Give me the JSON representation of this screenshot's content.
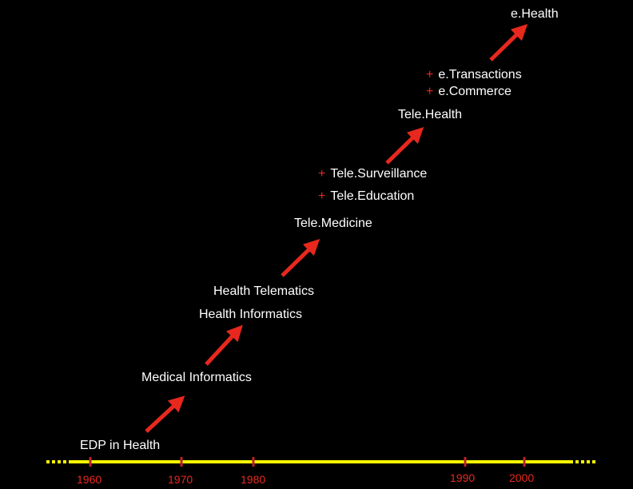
{
  "stages": {
    "edp": "EDP in Health",
    "medical_informatics": "Medical Informatics",
    "health_informatics": "Health Informatics",
    "health_telematics": "Health Telematics",
    "telemedicine": "Tele.Medicine",
    "tele_education": "Tele.Education",
    "tele_surveillance": "Tele.Surveillance",
    "telehealth": "Tele.Health",
    "ecommerce": "e.Commerce",
    "etransactions": "e.Transactions",
    "ehealth": "e.Health",
    "plus_sign": "+"
  },
  "timeline": {
    "years": [
      "1960",
      "1970",
      "1980",
      "1990",
      "2000"
    ]
  },
  "colors": {
    "background": "#000000",
    "arrow": "#e8281e",
    "timeline": "#ffff00",
    "tick": "#c0202a",
    "text": "#ffffff",
    "year_text": "#e8281e"
  }
}
